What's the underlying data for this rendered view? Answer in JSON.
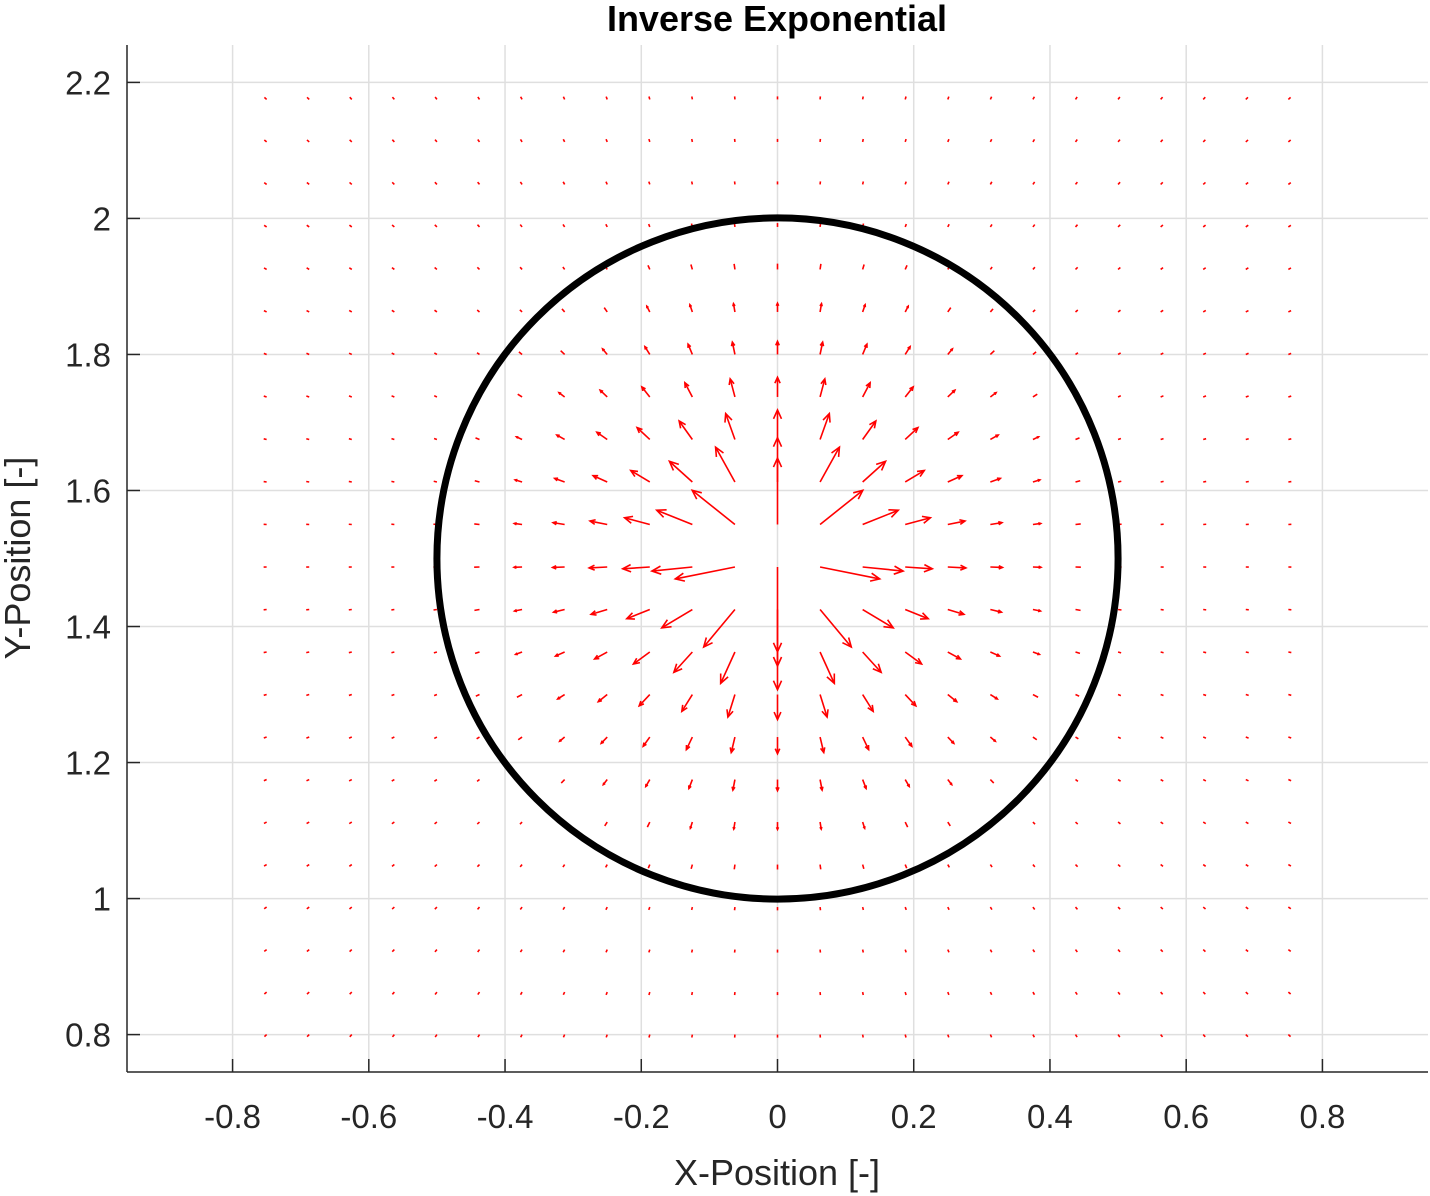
{
  "chart_data": {
    "type": "quiver",
    "title": "Inverse Exponential",
    "xlabel": "X-Position [-]",
    "ylabel": "Y-Position [-]",
    "xlim": [
      -0.955,
      0.955
    ],
    "ylim": [
      0.745,
      2.255
    ],
    "xticks": [
      -0.8,
      -0.6,
      -0.4,
      -0.2,
      0,
      0.2,
      0.4,
      0.6,
      0.8
    ],
    "xtick_labels": [
      "-0.8",
      "-0.6",
      "-0.4",
      "-0.2",
      "0",
      "0.2",
      "0.4",
      "0.6",
      "0.8"
    ],
    "yticks": [
      0.8,
      1,
      1.2,
      1.4,
      1.6,
      1.8,
      2,
      2.2
    ],
    "ytick_labels": [
      "0.8",
      "1",
      "1.2",
      "1.4",
      "1.6",
      "1.8",
      "2",
      "2.2"
    ],
    "grid": true,
    "circle": {
      "center": [
        0,
        1.5
      ],
      "radius": 0.5,
      "color": "#000000"
    },
    "vector_field": {
      "color": "#ff0000",
      "x_range": [
        -0.75,
        0.75
      ],
      "x_step": 0.0625,
      "y_range": [
        0.8,
        2.2
      ],
      "y_step": 0.0625,
      "direction": "radially outward from (0, 1.5)",
      "magnitude": "largest near the center, decaying toward the boundary and beyond"
    }
  }
}
